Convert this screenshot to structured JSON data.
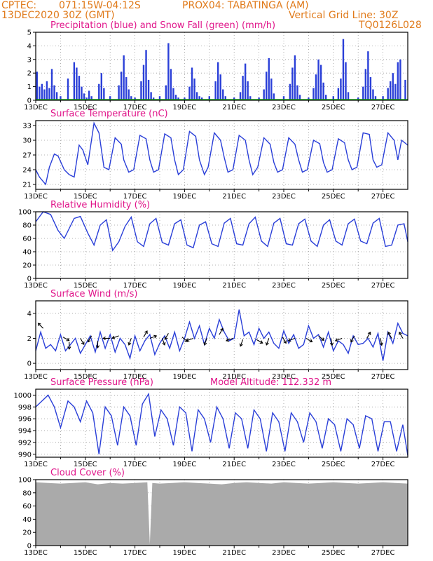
{
  "header": {
    "line1_left": "CPTEC:",
    "line1_coords": "071:15W-04:12S",
    "line1_station": "PROX04: TABATINGA (AM)",
    "line2_date": "13DEC2020 30Z (GMT)",
    "line2_grid": "Vertical Grid Line: 30Z",
    "line3_code": "TQ0126L028"
  },
  "colors": {
    "header": "#e07a1a",
    "title": "#e0158a",
    "series": "#2a3fd8",
    "snow": "#17a417",
    "cloud": "#aaaaaa"
  },
  "x_ticks": [
    "13DEC",
    "15DEC",
    "17DEC",
    "19DEC",
    "21DEC",
    "23DEC",
    "25DEC",
    "27DEC"
  ],
  "chart_data": [
    {
      "id": "precip",
      "type": "bar",
      "title": "Precipitation (blue) and Snow Fall (green) (mm/h)",
      "ylim": [
        0,
        5
      ],
      "yticks": [
        "0",
        "1",
        "2",
        "3",
        "4",
        "5"
      ],
      "xlim_days": [
        0,
        15
      ],
      "series": [
        {
          "name": "Precipitation",
          "x_days": [
            0.05,
            0.15,
            0.25,
            0.35,
            0.45,
            0.55,
            0.65,
            0.75,
            0.85,
            1.0,
            1.3,
            1.55,
            1.65,
            1.75,
            1.85,
            1.95,
            2.05,
            2.15,
            2.25,
            2.55,
            2.65,
            2.75,
            3.0,
            3.35,
            3.45,
            3.55,
            3.65,
            3.75,
            3.85,
            4.0,
            4.25,
            4.35,
            4.45,
            4.55,
            4.65,
            4.75,
            5.0,
            5.25,
            5.35,
            5.45,
            5.55,
            5.65,
            5.75,
            6.0,
            6.2,
            6.3,
            6.4,
            6.5,
            6.6,
            6.7,
            7.0,
            7.25,
            7.35,
            7.45,
            7.55,
            7.65,
            8.0,
            8.25,
            8.35,
            8.45,
            8.55,
            8.65,
            9.0,
            9.2,
            9.3,
            9.4,
            9.5,
            9.6,
            10.0,
            10.25,
            10.35,
            10.45,
            10.55,
            10.65,
            11.0,
            11.2,
            11.3,
            11.4,
            11.5,
            11.6,
            11.7,
            12.0,
            12.2,
            12.3,
            12.4,
            12.5,
            12.6,
            13.0,
            13.2,
            13.3,
            13.4,
            13.5,
            13.6,
            13.7,
            14.0,
            14.2,
            14.3,
            14.4,
            14.5,
            14.6,
            14.7,
            14.9
          ],
          "values": [
            2.1,
            1.0,
            1.2,
            0.8,
            1.4,
            0.9,
            2.3,
            1.1,
            0.6,
            0.3,
            1.6,
            2.8,
            2.4,
            1.8,
            1.0,
            0.5,
            0.2,
            0.7,
            0.3,
            1.2,
            2.0,
            0.9,
            0.3,
            1.1,
            2.1,
            3.3,
            1.7,
            0.8,
            0.3,
            0.2,
            1.4,
            2.6,
            3.7,
            1.5,
            0.6,
            0.2,
            0.3,
            1.1,
            4.2,
            2.3,
            0.9,
            0.4,
            0.2,
            0.2,
            1.0,
            2.4,
            1.6,
            0.6,
            0.3,
            0.2,
            0.3,
            1.4,
            2.8,
            1.9,
            0.8,
            0.3,
            0.2,
            0.6,
            1.8,
            2.7,
            1.4,
            0.3,
            0.2,
            0.8,
            2.1,
            3.1,
            1.6,
            0.5,
            0.3,
            1.2,
            2.4,
            3.3,
            1.1,
            0.4,
            0.2,
            0.9,
            1.9,
            3.0,
            2.6,
            1.3,
            0.4,
            0.3,
            0.9,
            1.6,
            4.5,
            2.8,
            0.6,
            0.2,
            1.0,
            2.3,
            3.6,
            1.7,
            0.8,
            0.3,
            0.3,
            0.9,
            1.4,
            2.0,
            1.2,
            2.8,
            3.0,
            1.5
          ]
        },
        {
          "name": "Snow Fall",
          "x_days": [
            0,
            15
          ],
          "values": [
            0,
            0
          ]
        }
      ]
    },
    {
      "id": "temp",
      "type": "line",
      "title": "Surface Temperature (nC)",
      "ylim": [
        20,
        34
      ],
      "yticks": [
        "21",
        "24",
        "27",
        "30",
        "33"
      ],
      "xlim_days": [
        0,
        15
      ],
      "x_days": [
        0,
        0.15,
        0.4,
        0.55,
        0.75,
        0.9,
        1.15,
        1.35,
        1.55,
        1.75,
        1.9,
        2.1,
        2.35,
        2.55,
        2.75,
        2.95,
        3.2,
        3.45,
        3.55,
        3.75,
        3.95,
        4.2,
        4.45,
        4.6,
        4.75,
        4.95,
        5.2,
        5.45,
        5.6,
        5.75,
        5.95,
        6.2,
        6.45,
        6.6,
        6.8,
        6.95,
        7.2,
        7.45,
        7.6,
        7.75,
        7.95,
        8.2,
        8.45,
        8.6,
        8.75,
        8.95,
        9.2,
        9.45,
        9.6,
        9.75,
        9.95,
        10.2,
        10.45,
        10.6,
        10.75,
        10.95,
        11.2,
        11.45,
        11.6,
        11.75,
        11.95,
        12.2,
        12.45,
        12.6,
        12.75,
        12.95,
        13.2,
        13.45,
        13.6,
        13.75,
        13.95,
        14.2,
        14.45,
        14.6,
        14.75,
        15.0
      ],
      "values": [
        24.0,
        22.5,
        21.0,
        24.5,
        27.2,
        26.8,
        24.0,
        23.0,
        22.5,
        29.0,
        28.0,
        25.0,
        33.5,
        31.5,
        24.5,
        24.0,
        30.5,
        29.2,
        26.0,
        23.5,
        24.0,
        31.0,
        30.3,
        26.0,
        23.5,
        24.0,
        31.3,
        30.5,
        26.0,
        23.0,
        24.0,
        31.8,
        30.8,
        26.0,
        23.0,
        24.5,
        31.5,
        30.0,
        26.5,
        23.5,
        24.0,
        31.0,
        30.0,
        26.0,
        23.0,
        24.5,
        30.5,
        29.2,
        25.5,
        23.5,
        24.0,
        30.5,
        29.2,
        26.0,
        23.5,
        24.0,
        30.0,
        29.3,
        25.5,
        23.5,
        24.0,
        30.3,
        29.5,
        26.0,
        24.0,
        24.5,
        31.5,
        31.2,
        26.0,
        24.5,
        25.0,
        31.5,
        30.0,
        26.0,
        30.0,
        29.0
      ]
    },
    {
      "id": "rh",
      "type": "line",
      "title": "Relative Humidity (%)",
      "ylim": [
        0,
        100
      ],
      "yticks": [
        "0",
        "20",
        "40",
        "60",
        "80",
        "100"
      ],
      "xlim_days": [
        0,
        15
      ],
      "x_days": [
        0,
        0.3,
        0.6,
        0.9,
        1.15,
        1.35,
        1.55,
        1.8,
        2.1,
        2.35,
        2.6,
        2.85,
        3.1,
        3.35,
        3.6,
        3.85,
        4.1,
        4.35,
        4.6,
        4.85,
        5.1,
        5.35,
        5.6,
        5.85,
        6.1,
        6.35,
        6.6,
        6.85,
        7.1,
        7.35,
        7.6,
        7.85,
        8.1,
        8.35,
        8.6,
        8.85,
        9.1,
        9.35,
        9.6,
        9.85,
        10.1,
        10.35,
        10.6,
        10.85,
        11.1,
        11.35,
        11.6,
        11.85,
        12.1,
        12.35,
        12.6,
        12.85,
        13.1,
        13.35,
        13.6,
        13.85,
        14.1,
        14.35,
        14.6,
        14.85,
        15.0
      ],
      "values": [
        85,
        100,
        96,
        72,
        60,
        75,
        90,
        93,
        68,
        50,
        80,
        88,
        42,
        55,
        78,
        92,
        55,
        48,
        82,
        90,
        54,
        50,
        82,
        88,
        50,
        46,
        80,
        85,
        52,
        48,
        83,
        90,
        52,
        50,
        82,
        92,
        56,
        48,
        83,
        90,
        52,
        50,
        82,
        89,
        56,
        48,
        80,
        88,
        56,
        50,
        82,
        89,
        56,
        52,
        83,
        90,
        48,
        50,
        80,
        82,
        55
      ]
    },
    {
      "id": "wind",
      "type": "line",
      "title": "Surface Wind (m/s)",
      "ylim": [
        -0.5,
        5
      ],
      "yticks": [
        "0",
        "2",
        "4"
      ],
      "xlim_days": [
        0,
        15
      ],
      "x_days": [
        0,
        0.2,
        0.4,
        0.6,
        0.8,
        1.0,
        1.2,
        1.4,
        1.6,
        1.8,
        2.0,
        2.2,
        2.4,
        2.6,
        2.8,
        3.0,
        3.2,
        3.4,
        3.6,
        3.8,
        4.0,
        4.2,
        4.4,
        4.6,
        4.8,
        5.0,
        5.2,
        5.4,
        5.6,
        5.8,
        6.0,
        6.2,
        6.4,
        6.6,
        6.8,
        7.0,
        7.2,
        7.4,
        7.6,
        7.8,
        8.0,
        8.2,
        8.4,
        8.6,
        8.8,
        9.0,
        9.2,
        9.4,
        9.6,
        9.8,
        10.0,
        10.2,
        10.4,
        10.6,
        10.8,
        11.0,
        11.2,
        11.4,
        11.6,
        11.8,
        12.0,
        12.2,
        12.4,
        12.6,
        12.8,
        13.0,
        13.2,
        13.4,
        13.6,
        13.8,
        14.0,
        14.2,
        14.4,
        14.6,
        14.8,
        15.0
      ],
      "values": [
        1.0,
        2.5,
        1.2,
        1.5,
        1.0,
        2.3,
        1.0,
        1.5,
        2.0,
        0.8,
        1.5,
        2.2,
        0.9,
        2.5,
        1.2,
        2.3,
        0.9,
        2.0,
        1.5,
        0.4,
        2.2,
        1.0,
        1.8,
        2.3,
        0.7,
        1.6,
        2.2,
        1.2,
        2.5,
        1.0,
        2.0,
        3.3,
        2.0,
        3.0,
        1.5,
        2.8,
        2.0,
        3.5,
        2.5,
        1.8,
        2.0,
        4.3,
        2.2,
        2.5,
        1.5,
        2.8,
        2.0,
        2.5,
        1.6,
        1.2,
        2.6,
        1.6,
        2.3,
        1.2,
        1.5,
        3.0,
        2.0,
        2.3,
        1.3,
        2.5,
        1.0,
        1.8,
        1.5,
        0.8,
        2.2,
        1.5,
        1.6,
        2.0,
        1.3,
        2.4,
        0.2,
        2.5,
        1.6,
        3.2,
        2.4,
        2.2
      ],
      "arrows": {
        "x_days": [
          0.3,
          1.1,
          1.35,
          1.8,
          2.25,
          2.5,
          3.0,
          3.35,
          3.85,
          4.35,
          4.6,
          5.1,
          5.35,
          5.9,
          6.35,
          6.9,
          7.4,
          7.95,
          8.35,
          8.9,
          9.4,
          9.95,
          10.45,
          10.9,
          11.4,
          11.9,
          12.35,
          12.85,
          13.35,
          13.9,
          14.35,
          14.8
        ],
        "y": [
          2.8,
          2.1,
          1.7,
          2.0,
          2.2,
          1.8,
          2.0,
          2.2,
          2.0,
          2.1,
          2.0,
          2.0,
          2.4,
          2.1,
          2.0,
          2.0,
          2.3,
          2.0,
          1.9,
          1.9,
          2.0,
          2.1,
          2.0,
          2.0,
          2.2,
          2.0,
          2.0,
          2.2,
          2.0,
          2.0,
          2.0,
          2.0
        ],
        "dir_deg": [
          135,
          330,
          270,
          300,
          240,
          270,
          180,
          200,
          250,
          60,
          20,
          290,
          240,
          320,
          200,
          250,
          60,
          200,
          250,
          330,
          250,
          300,
          200,
          330,
          320,
          280,
          200,
          240,
          60,
          280,
          120,
          120
        ]
      }
    },
    {
      "id": "press",
      "type": "line",
      "title": "Surface Pressure (hPa)",
      "annotation": "Model Altitude: 112.332 m",
      "ylim": [
        989.5,
        1001
      ],
      "yticks": [
        "990",
        "992",
        "994",
        "996",
        "998",
        "1000"
      ],
      "xlim_days": [
        0,
        15
      ],
      "x_days": [
        0,
        0.25,
        0.5,
        0.75,
        1.0,
        1.3,
        1.55,
        1.8,
        2.05,
        2.3,
        2.55,
        2.8,
        3.05,
        3.3,
        3.55,
        3.8,
        4.05,
        4.3,
        4.55,
        4.8,
        5.05,
        5.3,
        5.55,
        5.8,
        6.05,
        6.3,
        6.55,
        6.8,
        7.05,
        7.3,
        7.55,
        7.8,
        8.05,
        8.3,
        8.55,
        8.8,
        9.05,
        9.3,
        9.55,
        9.8,
        10.05,
        10.3,
        10.55,
        10.8,
        11.05,
        11.3,
        11.55,
        11.8,
        12.05,
        12.3,
        12.55,
        12.8,
        13.05,
        13.3,
        13.55,
        13.8,
        14.05,
        14.3,
        14.55,
        14.8,
        15.0
      ],
      "values": [
        998,
        999,
        1000,
        998,
        994.5,
        999,
        998,
        995.5,
        999,
        997,
        990,
        998,
        996.5,
        991.5,
        998,
        996.5,
        991.5,
        998.5,
        1000.2,
        993,
        997.5,
        996,
        991.5,
        998,
        997,
        990.5,
        997.5,
        996,
        992,
        998,
        996,
        991,
        997,
        996,
        991,
        997.5,
        996,
        990.5,
        997,
        995.5,
        990.5,
        997,
        995.5,
        992,
        997,
        995.5,
        991,
        996,
        995,
        990.5,
        996,
        995,
        991,
        996.5,
        996,
        990.5,
        995.5,
        995.5,
        990.5,
        995,
        989.8
      ]
    },
    {
      "id": "cloud",
      "type": "area",
      "title": "Cloud Cover (%)",
      "ylim": [
        0,
        100
      ],
      "yticks": [
        "0",
        "20",
        "40",
        "60",
        "80",
        "100"
      ],
      "xlim_days": [
        0,
        15
      ],
      "x_days": [
        0,
        0.5,
        1.0,
        1.5,
        2.0,
        2.5,
        3.0,
        3.5,
        4.0,
        4.5,
        4.6,
        4.7,
        5.0,
        5.5,
        6.0,
        6.5,
        7.0,
        7.5,
        8.0,
        8.5,
        9.0,
        9.5,
        10.0,
        10.5,
        11.0,
        11.5,
        12.0,
        12.5,
        13.0,
        13.5,
        14.0,
        14.5,
        15.0
      ],
      "values": [
        96,
        95,
        94,
        95,
        96,
        93,
        95,
        94,
        95,
        96,
        2,
        95,
        94,
        95,
        96,
        95,
        94,
        93,
        95,
        96,
        95,
        94,
        96,
        95,
        94,
        95,
        96,
        95,
        94,
        95,
        96,
        95,
        94
      ]
    }
  ]
}
